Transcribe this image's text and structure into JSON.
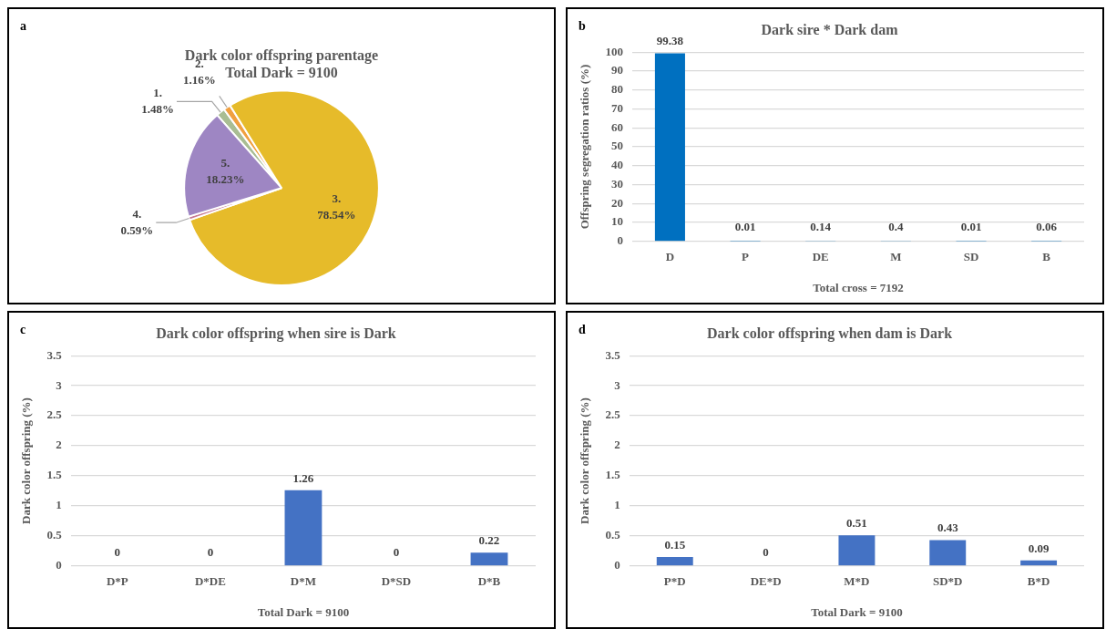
{
  "chart_data": [
    {
      "type": "pie",
      "title": "Dark color offspring parentage",
      "subtitle": "Total Dark = 9100",
      "annotations": [
        "a"
      ],
      "categories": [
        "1.",
        "2.",
        "3.",
        "4.",
        "5."
      ],
      "values": [
        1.48,
        1.16,
        78.54,
        0.59,
        18.23
      ],
      "value_labels": [
        "1.48%",
        "1.16%",
        "78.54%",
        "0.59%",
        "18.23%"
      ],
      "colors": [
        "#a9bd93",
        "#f0a040",
        "#e6bb2a",
        "#c97b93",
        "#9e86c3"
      ]
    },
    {
      "type": "bar",
      "title": "Dark sire * Dark dam",
      "annotations": [
        "b"
      ],
      "xlabel": "Total cross = 7192",
      "ylabel": "Offspring segregation ratios (%)",
      "categories": [
        "D",
        "P",
        "DE",
        "M",
        "SD",
        "B"
      ],
      "values": [
        99.38,
        0.01,
        0.14,
        0.4,
        0.01,
        0.06
      ],
      "color": "#0070c0",
      "ylim": [
        0,
        100
      ],
      "yticks": [
        0,
        10,
        20,
        30,
        40,
        50,
        60,
        70,
        80,
        90,
        100
      ],
      "grid": "y",
      "data_labels": true
    },
    {
      "type": "bar",
      "title": "Dark color offspring when sire is Dark",
      "annotations": [
        "c"
      ],
      "xlabel": "Total Dark = 9100",
      "ylabel": "Dark color offspring (%)",
      "categories": [
        "D*P",
        "D*DE",
        "D*M",
        "D*SD",
        "D*B"
      ],
      "values": [
        0,
        0,
        1.26,
        0,
        0.22
      ],
      "color": "#4472c4",
      "ylim": [
        0,
        3.5
      ],
      "yticks": [
        0,
        0.5,
        1,
        1.5,
        2,
        2.5,
        3,
        3.5
      ],
      "grid": "y",
      "data_labels": true
    },
    {
      "type": "bar",
      "title": "Dark color offspring when dam is Dark",
      "annotations": [
        "d"
      ],
      "xlabel": "Total Dark = 9100",
      "ylabel": "Dark color offspring (%)",
      "categories": [
        "P*D",
        "DE*D",
        "M*D",
        "SD*D",
        "B*D"
      ],
      "values": [
        0.15,
        0,
        0.51,
        0.43,
        0.09
      ],
      "color": "#4472c4",
      "ylim": [
        0,
        3.5
      ],
      "yticks": [
        0,
        0.5,
        1,
        1.5,
        2,
        2.5,
        3,
        3.5
      ],
      "grid": "y",
      "data_labels": true
    }
  ]
}
